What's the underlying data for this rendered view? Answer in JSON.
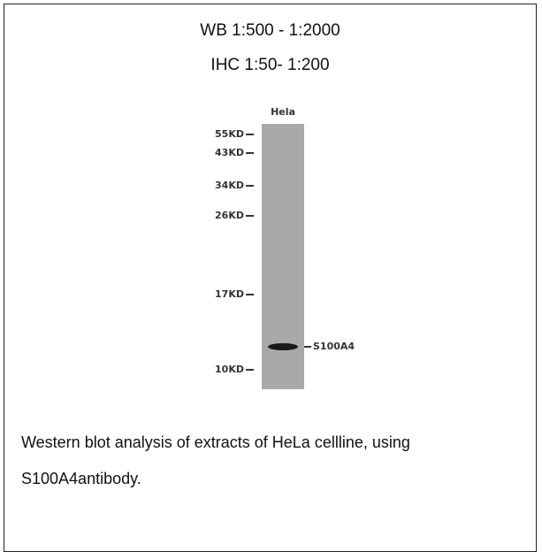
{
  "header": {
    "wb": "WB 1:500 - 1:2000",
    "ihc": "IHC 1:50- 1:200"
  },
  "blot": {
    "lane": "Hela",
    "markers": [
      "55KD",
      "43KD",
      "34KD",
      "26KD",
      "17KD",
      "10KD"
    ],
    "band": "S100A4"
  },
  "caption": "Western blot analysis of extracts of HeLa cellline, using S100A4antibody."
}
